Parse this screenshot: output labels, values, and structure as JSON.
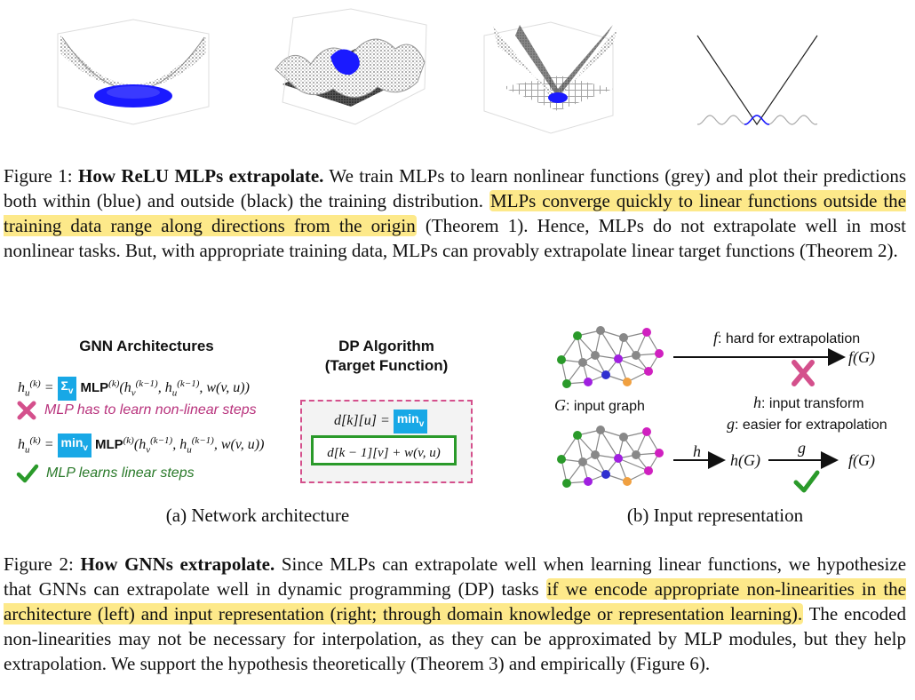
{
  "figure1": {
    "label": "Figure 1:",
    "bold": "How ReLU MLPs extrapolate.",
    "text_a": " We train MLPs to learn nonlinear functions (grey) and plot their predictions both within (blue) and outside (black) the training distribution. ",
    "highlight": "MLPs converge quickly to linear functions outside the training data range along directions from the origin",
    "text_b": " (Theorem 1). Hence, MLPs do not extrapolate well in most nonlinear tasks. But, with appropriate training data, MLPs can provably extrapolate linear target functions (Theorem 2)."
  },
  "panel_a": {
    "title_gnn": "GNN Architectures",
    "title_dp_1": "DP Algorithm",
    "title_dp_2": "(Target Function)",
    "eq1_lhs": "h",
    "op_sum": "Σ",
    "op_sum_sub": "v",
    "mlp": "MLP",
    "bad_note": "MLP has to learn non-linear steps",
    "op_min": "min",
    "op_min_sub": "v",
    "good_note": "MLP learns linear steps",
    "dp_lhs": "d[k][u] =",
    "dp_rhs": "d[k − 1][v] + w(v, u)",
    "caption": "(a) Network architecture"
  },
  "panel_b": {
    "f_label": "f",
    "f_desc": ": hard for extrapolation",
    "fG": "f(G)",
    "G_label": "G",
    "G_desc": ": input graph",
    "h_label": "h",
    "h_desc": ": input transform",
    "g_label": "g",
    "g_desc": ": easier for extrapolation",
    "arrow_h": "h",
    "hG": "h(G)",
    "arrow_g": "g",
    "fG2": "f(G)",
    "caption": "(b) Input representation"
  },
  "figure2": {
    "label": "Figure 2:",
    "bold": "How GNNs extrapolate.",
    "text_a": " Since MLPs can extrapolate well when learning linear functions, we hypothesize that GNNs can extrapolate well in dynamic programming (DP) tasks ",
    "highlight": "if we encode appropriate non-linearities in the architecture (left) and input representation (right; through domain knowledge or representation learning).",
    "text_b": " The encoded non-linearities may not be necessary for interpolation, as they can be approximated by MLP modules, but they help extrapolation. We support the hypothesis theoretically (Theorem 3) and empirically (Figure 6)."
  },
  "colors": {
    "blue": "#1a1aff",
    "highlight": "#fde98a",
    "op": "#18a8e6",
    "green": "#2a9a2a",
    "pink": "#d4508c"
  }
}
